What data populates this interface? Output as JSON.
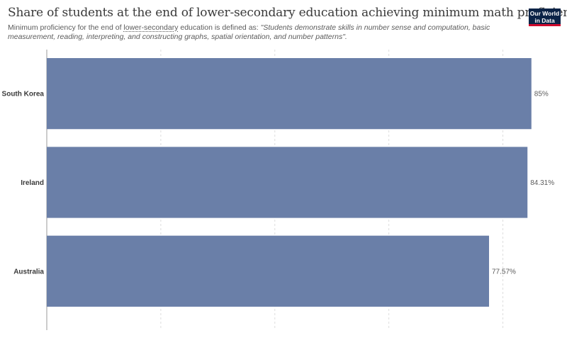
{
  "header": {
    "title": "Share of students at the end of lower-secondary education achieving minimum math proficiency",
    "subtitle_pre": "Minimum proficiency for the end of ",
    "subtitle_link": "lower-secondary",
    "subtitle_mid": " education is defined as: ",
    "subtitle_quote": "\"Students demonstrate skills in number sense and computation, basic measurement, reading, interpreting, and constructing graphs, spatial orientation, and number patterns\".",
    "logo_line1": "Our World",
    "logo_line2": "in Data"
  },
  "chart_data": {
    "type": "bar",
    "orientation": "horizontal",
    "categories": [
      "South Korea",
      "Ireland",
      "Australia"
    ],
    "values": [
      85,
      84.31,
      77.57
    ],
    "value_labels": [
      "85%",
      "84.31%",
      "77.57%"
    ],
    "xlim": [
      0,
      90
    ],
    "grid": true,
    "bar_color": "#6a7fa8"
  }
}
